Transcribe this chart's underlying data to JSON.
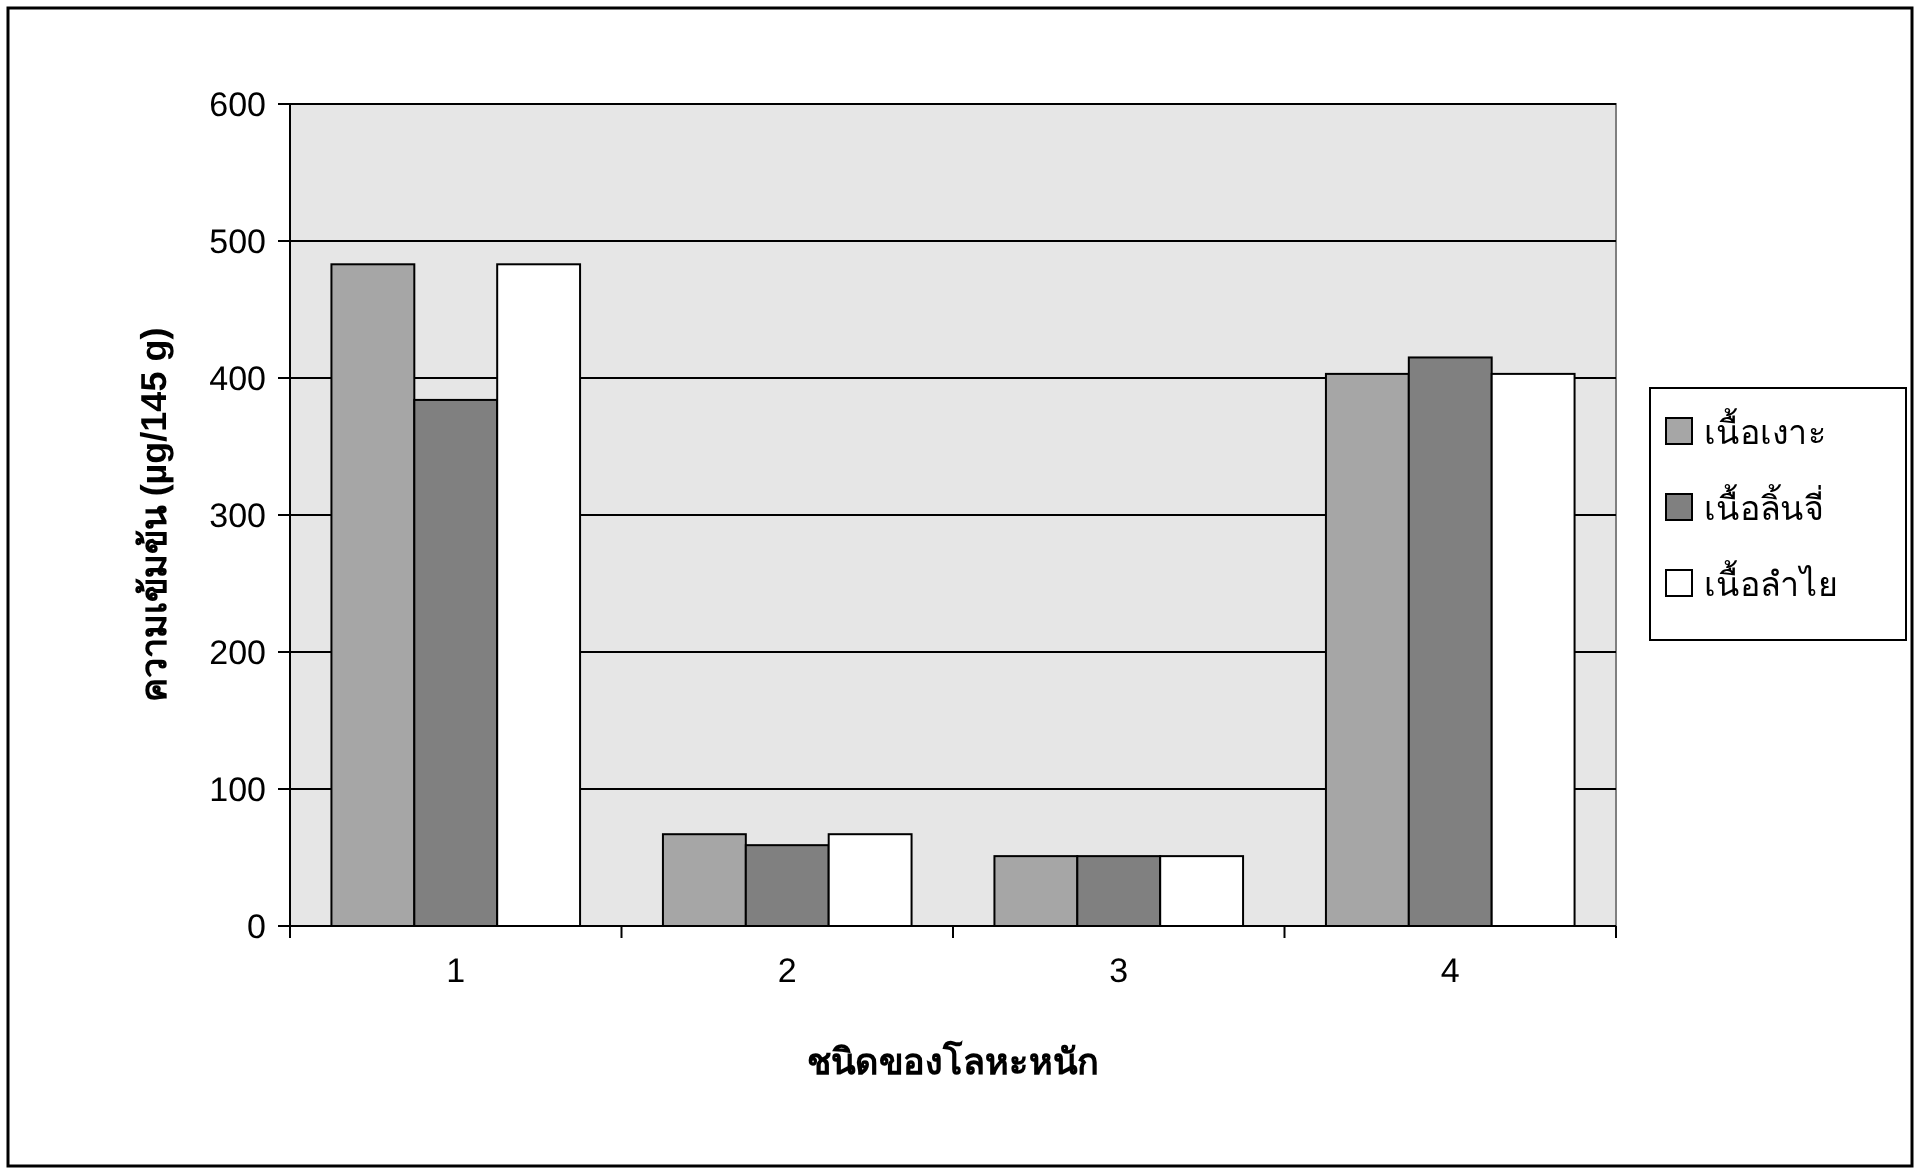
{
  "chart_data": {
    "type": "bar",
    "xlabel": "ชนิดของโลหะหนัก",
    "ylabel": "ความเข้มข้น (µg/145 g)",
    "categories": [
      "1",
      "2",
      "3",
      "4"
    ],
    "series": [
      {
        "name": "เนื้อเงาะ",
        "color": "#a6a6a6",
        "values": [
          483,
          67,
          51,
          403
        ]
      },
      {
        "name": "เนื้อลิ้นจี่",
        "color": "#808080",
        "values": [
          384,
          59,
          51,
          415
        ]
      },
      {
        "name": "เนื้อลำไย",
        "color": "#ffffff",
        "values": [
          483,
          67,
          51,
          403
        ]
      }
    ],
    "ylim": [
      0,
      600
    ],
    "yticks": [
      0,
      100,
      200,
      300,
      400,
      500,
      600
    ],
    "grid": "y",
    "legend": "right"
  }
}
